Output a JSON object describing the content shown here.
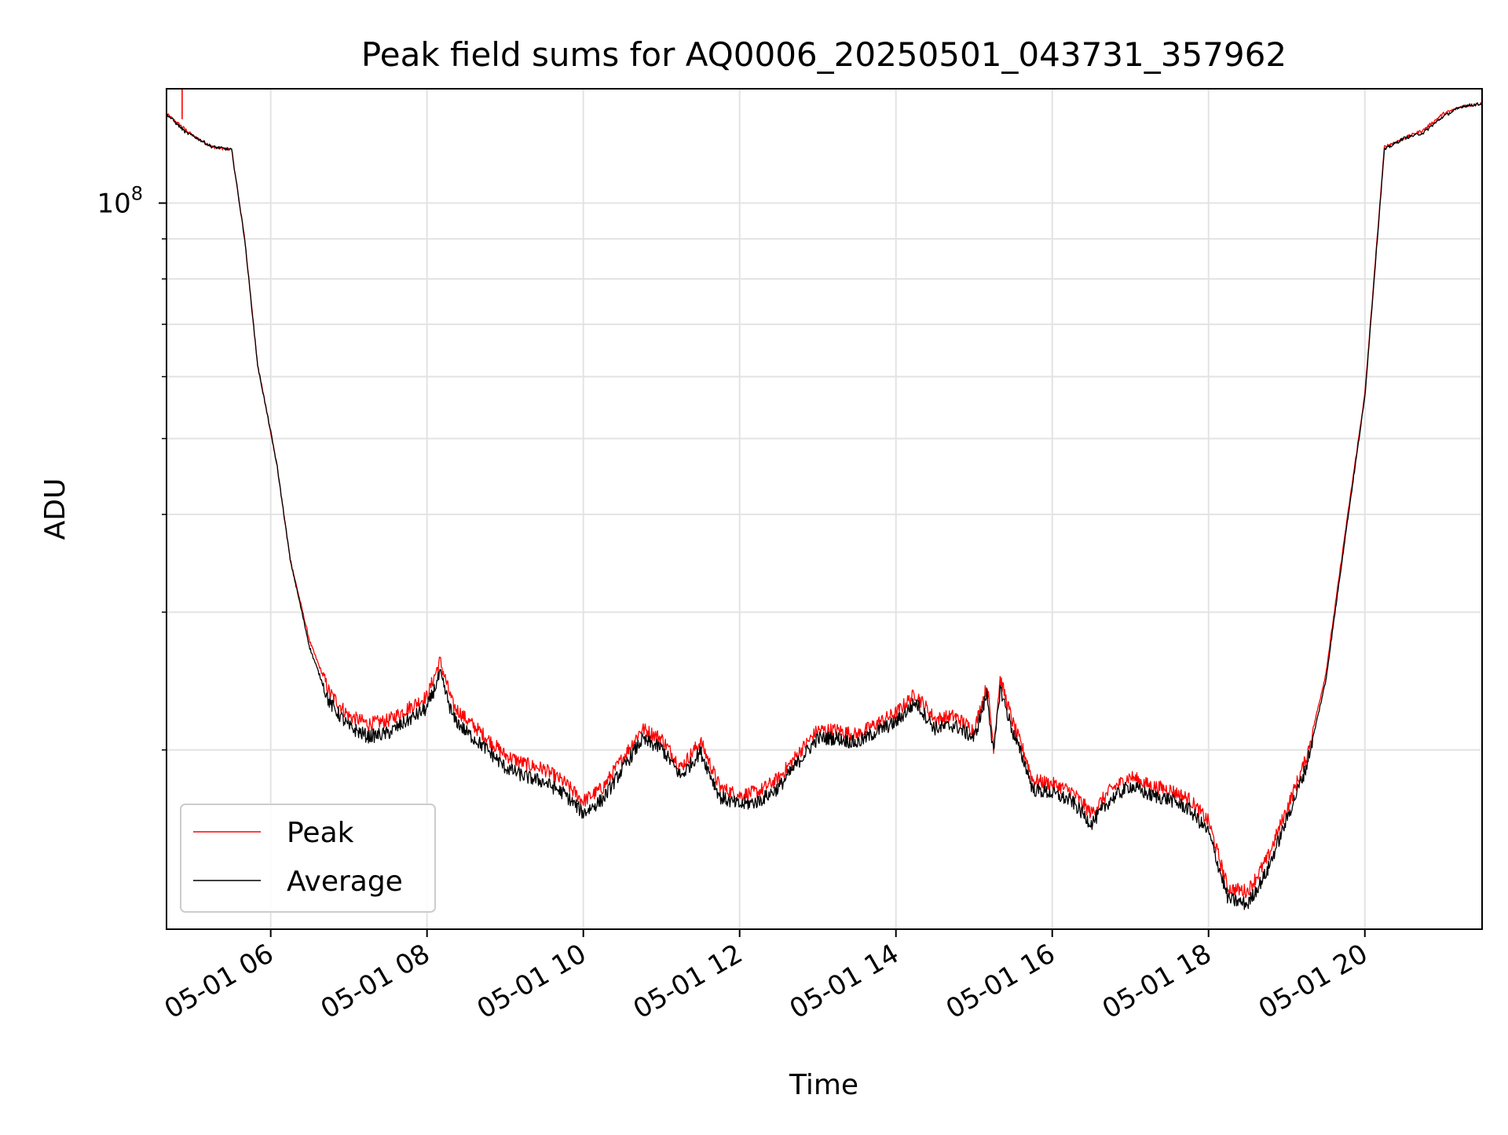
{
  "chart_data": {
    "type": "line",
    "title": "Peak field sums for AQ0006_20250501_043731_357962",
    "xlabel": "Time",
    "ylabel": "ADU",
    "x_axis_type": "datetime",
    "xlim": [
      "2025-05-01 04:40",
      "2025-05-01 21:30"
    ],
    "x_tick_labels": [
      "05-01 06",
      "05-01 08",
      "05-01 10",
      "05-01 12",
      "05-01 14",
      "05-01 16",
      "05-01 18",
      "05-01 20"
    ],
    "x_tick_values": [
      "2025-05-01 06:00",
      "2025-05-01 08:00",
      "2025-05-01 10:00",
      "2025-05-01 12:00",
      "2025-05-01 14:00",
      "2025-05-01 16:00",
      "2025-05-01 18:00",
      "2025-05-01 20:00"
    ],
    "y_scale": "log",
    "ylim": [
      11800000,
      140000000
    ],
    "y_major_ticks": [
      {
        "value": 100000000,
        "base": "10",
        "exponent": "8"
      }
    ],
    "y_minor_gridlines": [
      20000000,
      30000000,
      40000000,
      50000000,
      60000000,
      70000000,
      80000000,
      90000000
    ],
    "grid": true,
    "legend": {
      "position": "lower-left",
      "entries": [
        "Peak",
        "Average"
      ]
    },
    "colors": {
      "Peak": "#ff0000",
      "Average": "#000000"
    },
    "x": [
      "04:40",
      "04:55",
      "05:00",
      "05:15",
      "05:30",
      "05:40",
      "05:50",
      "06:00",
      "06:05",
      "06:15",
      "06:30",
      "06:45",
      "07:00",
      "07:15",
      "07:30",
      "07:45",
      "08:00",
      "08:10",
      "08:20",
      "08:30",
      "08:45",
      "09:00",
      "09:15",
      "09:30",
      "09:45",
      "10:00",
      "10:15",
      "10:30",
      "10:45",
      "11:00",
      "11:15",
      "11:30",
      "11:45",
      "12:00",
      "12:15",
      "12:30",
      "12:45",
      "13:00",
      "13:15",
      "13:30",
      "13:45",
      "14:00",
      "14:15",
      "14:30",
      "14:45",
      "15:00",
      "15:10",
      "15:15",
      "15:20",
      "15:30",
      "15:40",
      "15:45",
      "16:00",
      "16:15",
      "16:30",
      "16:45",
      "17:00",
      "17:15",
      "17:30",
      "17:45",
      "18:00",
      "18:15",
      "18:30",
      "18:45",
      "19:00",
      "19:15",
      "19:30",
      "19:45",
      "20:00",
      "20:15",
      "20:30",
      "20:45",
      "21:00",
      "21:15",
      "21:30"
    ],
    "series": [
      {
        "name": "Peak",
        "values": [
          130000000,
          124000000,
          122000000,
          118000000,
          117000000,
          90000000,
          62000000,
          51000000,
          46000000,
          35000000,
          27500000,
          23700000,
          22100000,
          21600000,
          21800000,
          22600000,
          23400000,
          26000000,
          22800000,
          21900000,
          20800000,
          19700000,
          19200000,
          18900000,
          18200000,
          17200000,
          17900000,
          19500000,
          21300000,
          20700000,
          19000000,
          20500000,
          17900000,
          17500000,
          17700000,
          18400000,
          19800000,
          21200000,
          21200000,
          20900000,
          21600000,
          22300000,
          23600000,
          21900000,
          22100000,
          21200000,
          24200000,
          20200000,
          24700000,
          21600000,
          19500000,
          18300000,
          18100000,
          17700000,
          16600000,
          17800000,
          18500000,
          18000000,
          17800000,
          17300000,
          16200000,
          13300000,
          13200000,
          14500000,
          16800000,
          19500000,
          25000000,
          38000000,
          57000000,
          118000000,
          121000000,
          124000000,
          130000000,
          133000000,
          134000000
        ]
      },
      {
        "name": "Average",
        "values": [
          130000000,
          123000000,
          122000000,
          118000000,
          117000000,
          90000000,
          62000000,
          51000000,
          46000000,
          35000000,
          27000000,
          23000000,
          21400000,
          20800000,
          21000000,
          21800000,
          22600000,
          25000000,
          22000000,
          21100000,
          20100000,
          19000000,
          18500000,
          18200000,
          17600000,
          16600000,
          17300000,
          18900000,
          20600000,
          20100000,
          18500000,
          19900000,
          17400000,
          17000000,
          17200000,
          17900000,
          19300000,
          20700000,
          20700000,
          20400000,
          21100000,
          21700000,
          23000000,
          21300000,
          21500000,
          20700000,
          23600000,
          19700000,
          24000000,
          21000000,
          19000000,
          17800000,
          17600000,
          17200000,
          16100000,
          17300000,
          18000000,
          17500000,
          17300000,
          16800000,
          15700000,
          12900000,
          12700000,
          14000000,
          16300000,
          19000000,
          24500000,
          37500000,
          56500000,
          117000000,
          121000000,
          123000000,
          129000000,
          133000000,
          134000000
        ]
      }
    ]
  }
}
